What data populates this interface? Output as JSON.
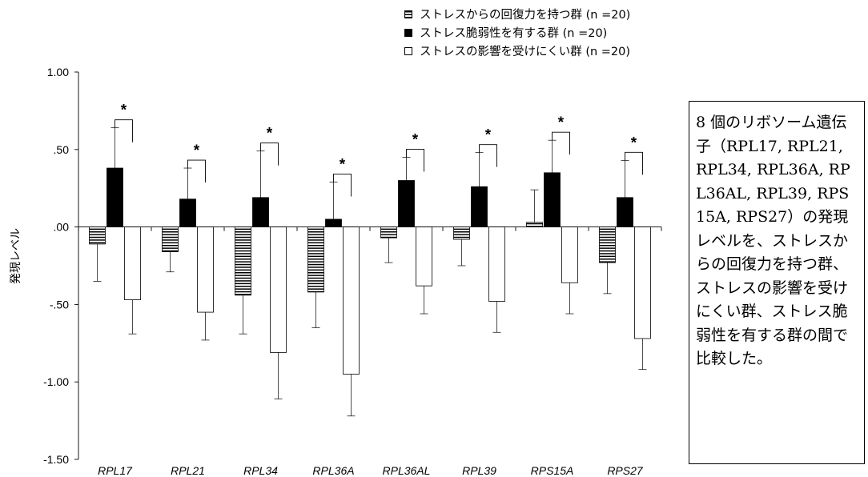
{
  "legend": [
    {
      "label": "ストレスからの回復力を持つ群 (n =20)",
      "pattern": "striped"
    },
    {
      "label": "ストレス脆弱性を有する群 (n =20)",
      "pattern": "black"
    },
    {
      "label": "ストレスの影響を受けにくい群 (n =20)",
      "pattern": "white"
    }
  ],
  "note": "8 個のリボソーム遺伝子（RPL17, RPL21, RPL34, RPL36A, RPL36AL, RPL39, RPS15A, RPS27）の発現レベルを、ストレスからの回復力を持つ群、ストレスの影響を受けにくい群、ストレス脆弱性を有する群の間で比較した。",
  "chart_data": {
    "type": "bar",
    "title": "",
    "xlabel": "",
    "ylabel": "発現レベル",
    "ylim": [
      -1.5,
      1.0
    ],
    "yticks": [
      1.0,
      0.5,
      0.0,
      -0.5,
      -1.0,
      -1.5
    ],
    "ytick_labels": [
      "1.00",
      ".50",
      ".00",
      "-.50",
      "-1.00",
      "-1.50"
    ],
    "categories": [
      "RPL17",
      "RPL21",
      "RPL34",
      "RPL36A",
      "RPL36AL",
      "RPL39",
      "RPS15A",
      "RPS27"
    ],
    "series": [
      {
        "name": "ストレスからの回復力を持つ群 (n =20)",
        "pattern": "striped",
        "values": [
          -0.11,
          -0.16,
          -0.44,
          -0.42,
          -0.07,
          -0.08,
          0.03,
          -0.23
        ],
        "errors": [
          0.24,
          0.13,
          0.25,
          0.23,
          0.16,
          0.17,
          0.21,
          0.2
        ]
      },
      {
        "name": "ストレス脆弱性を有する群 (n =20)",
        "pattern": "black",
        "values": [
          0.38,
          0.18,
          0.19,
          0.05,
          0.3,
          0.26,
          0.35,
          0.19
        ],
        "errors": [
          0.26,
          0.2,
          0.3,
          0.24,
          0.15,
          0.22,
          0.21,
          0.24
        ]
      },
      {
        "name": "ストレスの影響を受けにくい群 (n =20)",
        "pattern": "white",
        "values": [
          -0.47,
          -0.55,
          -0.81,
          -0.95,
          -0.38,
          -0.48,
          -0.36,
          -0.72
        ],
        "errors": [
          0.22,
          0.18,
          0.3,
          0.27,
          0.18,
          0.2,
          0.2,
          0.2
        ]
      }
    ],
    "significance": [
      "*",
      "*",
      "*",
      "*",
      "*",
      "*",
      "*",
      "*"
    ],
    "grid": false,
    "legend_position": "top-center"
  }
}
